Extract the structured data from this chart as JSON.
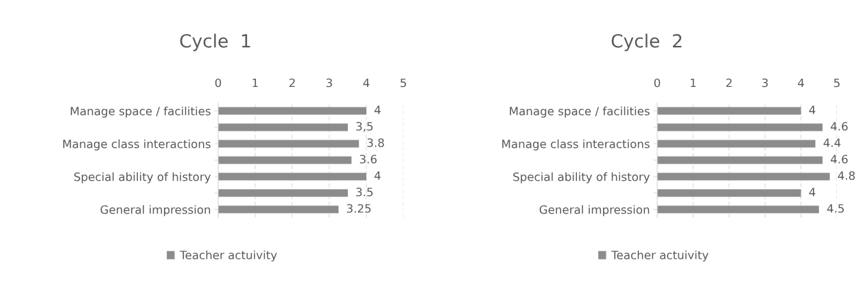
{
  "chart_data": [
    {
      "type": "bar",
      "orientation": "horizontal",
      "title": "Cycle  1",
      "categories": [
        "Manage space / facilities",
        null,
        "Manage class interactions",
        null,
        "Special ability of history",
        null,
        "General impression"
      ],
      "series": [
        {
          "name": "Teacher actuivity",
          "color": "#8c8c8c",
          "values": [
            4,
            3.5,
            3.8,
            3.6,
            4,
            3.5,
            3.25
          ],
          "value_labels": [
            "4",
            "3,5",
            "3.8",
            "3.6",
            "4",
            "3.5",
            "3.25"
          ]
        }
      ],
      "xlim": [
        0,
        5
      ],
      "xticks": [
        0,
        1,
        2,
        3,
        4,
        5
      ],
      "grid": "x",
      "legend": "bottom"
    },
    {
      "type": "bar",
      "orientation": "horizontal",
      "title": "Cycle  2",
      "categories": [
        "Manage space / facilities",
        null,
        "Manage class interactions",
        null,
        "Special ability of history",
        null,
        "General impression"
      ],
      "series": [
        {
          "name": "Teacher actuivity",
          "color": "#8c8c8c",
          "values": [
            4,
            4.6,
            4.4,
            4.6,
            4.8,
            4,
            4.5
          ],
          "value_labels": [
            "4",
            "4.6",
            "4.4",
            "4.6",
            "4.8",
            "4",
            "4.5"
          ]
        }
      ],
      "xlim": [
        0,
        5
      ],
      "xticks": [
        0,
        1,
        2,
        3,
        4,
        5
      ],
      "grid": "x",
      "legend": "bottom"
    }
  ]
}
